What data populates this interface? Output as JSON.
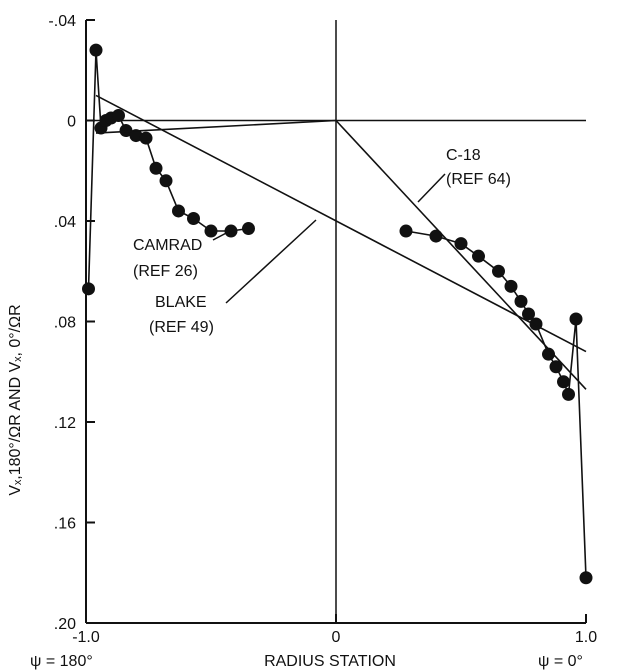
{
  "chart_data": {
    "type": "line",
    "xlabel": "RADIUS STATION",
    "ylabel": "Vₓ,180°/ΩR AND Vₓ, 0°/ΩR",
    "xlim": [
      -1.0,
      1.0
    ],
    "ylim": [
      -0.04,
      0.2
    ],
    "y_inverted": true,
    "x_ticks": [
      "-1.0",
      "0",
      "1.0"
    ],
    "y_ticks": [
      {
        "value": -0.04,
        "label": "-.04"
      },
      {
        "value": 0,
        "label": "0"
      },
      {
        "value": 0.04,
        "label": ".04"
      },
      {
        "value": 0.08,
        "label": ".08"
      },
      {
        "value": 0.12,
        "label": ".12"
      },
      {
        "value": 0.16,
        "label": ".16"
      },
      {
        "value": 0.2,
        "label": ".20"
      }
    ],
    "x_end_labels": {
      "left": "ψ = 180°",
      "right": "ψ = 0°"
    },
    "series": [
      {
        "name": "CAMRAD (REF 26)",
        "style": "line-markers",
        "segments": [
          {
            "x": [
              -0.99,
              -0.96,
              -0.94,
              -0.92,
              -0.9,
              -0.87,
              -0.84,
              -0.8,
              -0.76,
              -0.72,
              -0.68,
              -0.63,
              -0.57,
              -0.5,
              -0.42,
              -0.35
            ],
            "y": [
              0.067,
              -0.028,
              0.003,
              0.0,
              -0.001,
              -0.002,
              0.004,
              0.006,
              0.007,
              0.019,
              0.024,
              0.036,
              0.039,
              0.044,
              0.044,
              0.043
            ]
          },
          {
            "x": [
              0.28,
              0.4,
              0.5,
              0.57,
              0.65,
              0.7,
              0.74,
              0.77,
              0.8,
              0.85,
              0.88,
              0.91,
              0.93,
              0.96,
              1.0
            ],
            "y": [
              0.044,
              0.046,
              0.049,
              0.054,
              0.06,
              0.066,
              0.072,
              0.077,
              0.081,
              0.093,
              0.098,
              0.104,
              0.109,
              0.079,
              0.182
            ]
          }
        ]
      },
      {
        "name": "BLAKE (REF 49)",
        "style": "line",
        "x": [
          -0.96,
          1.0
        ],
        "y": [
          -0.01,
          0.092
        ]
      },
      {
        "name": "C-18 (REF 64)",
        "style": "line",
        "segments": [
          {
            "x": [
              -0.96,
              0.0
            ],
            "y": [
              0.005,
              0.0
            ]
          },
          {
            "x": [
              0.0,
              1.0
            ],
            "y": [
              0.0,
              0.107
            ]
          }
        ]
      }
    ],
    "annotations": [
      {
        "lines": [
          "C-18",
          "(REF 64)"
        ],
        "points_to": "C-18 (REF 64)"
      },
      {
        "lines": [
          "CAMRAD",
          "(REF 26)"
        ],
        "points_to": "CAMRAD (REF 26)"
      },
      {
        "lines": [
          "BLAKE",
          "(REF 49)"
        ],
        "points_to": "BLAKE (REF 49)"
      }
    ]
  }
}
